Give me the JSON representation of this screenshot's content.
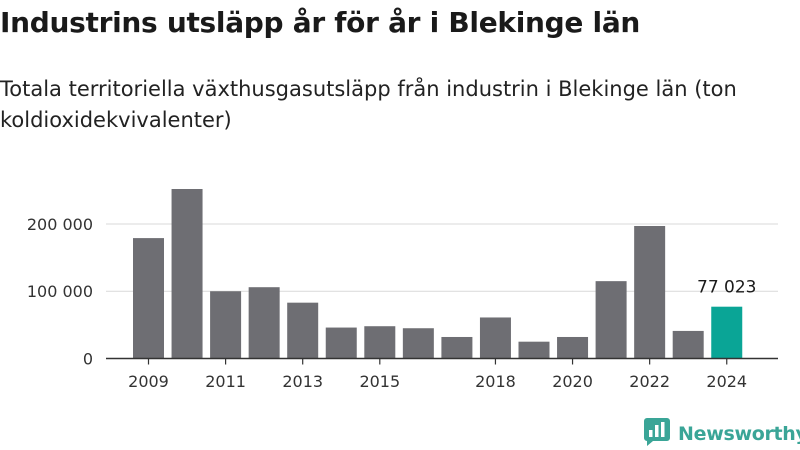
{
  "title": "Industrins utsläpp år för år i Blekinge län",
  "subtitle": "Totala territoriella växthusgasutsläpp från industrin i Blekinge län (ton koldioxidekvivalenter)",
  "brand": {
    "name": "Newsworthy",
    "color": "#3aa597",
    "icon": "newsworthy-chat-chart-icon"
  },
  "colors": {
    "bar": "#6e6e73",
    "highlight": "#0aa596",
    "grid": "#d9d9d9",
    "axis": "#333333"
  },
  "chart_data": {
    "type": "bar",
    "title": "Industrins utsläpp år för år i Blekinge län",
    "subtitle": "Totala territoriella växthusgasutsläpp från industrin i Blekinge län (ton koldioxidekvivalenter)",
    "categories": [
      "2009",
      "2010",
      "2011",
      "2012",
      "2013",
      "2014",
      "2015",
      "2016",
      "2017",
      "2018",
      "2019",
      "2020",
      "2021",
      "2022",
      "2023",
      "2024"
    ],
    "values": [
      179000,
      252000,
      100000,
      106000,
      83000,
      46000,
      48000,
      45000,
      32000,
      61000,
      25000,
      32000,
      115000,
      197000,
      41000,
      77023
    ],
    "highlight_index": 15,
    "x_tick_labels": [
      "2009",
      "2011",
      "2013",
      "2015",
      "2018",
      "2020",
      "2022",
      "2024"
    ],
    "y_ticks": [
      {
        "value": 0,
        "label": "0"
      },
      {
        "value": 100000,
        "label": "100 000"
      },
      {
        "value": 200000,
        "label": "200 000"
      }
    ],
    "data_labels": [
      {
        "index": 15,
        "label": "77 023"
      }
    ],
    "ylim": [
      0,
      252000
    ],
    "xlabel": "",
    "ylabel": "",
    "grid": true,
    "legend": "none"
  }
}
